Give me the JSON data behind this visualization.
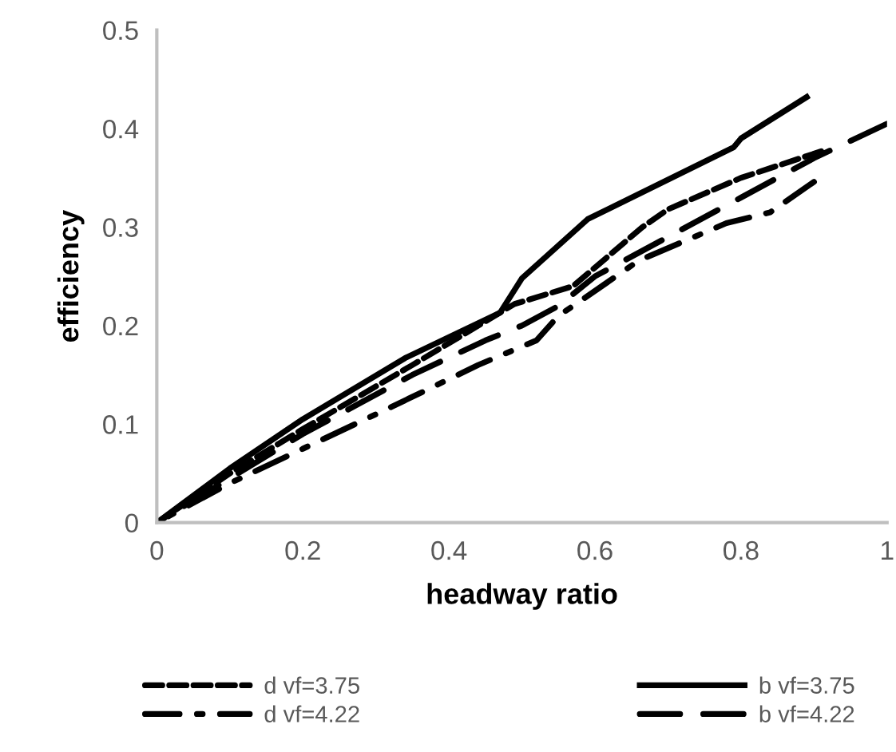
{
  "chart_data": {
    "type": "line",
    "xlabel": "headway ratio",
    "ylabel": "efficiency",
    "xlim": [
      0,
      1
    ],
    "xticks": [
      0,
      0.2,
      0.4,
      0.6,
      0.8,
      1
    ],
    "ylim": [
      0,
      0.5
    ],
    "yticks": [
      0,
      0.1,
      0.2,
      0.3,
      0.4,
      0.5
    ],
    "grid": false,
    "legend": "bottom",
    "marker": "none",
    "series": [
      {
        "name": "d vf=3.75",
        "color": "#000000",
        "line_style": "dashed",
        "x": [
          0,
          0.1,
          0.2,
          0.35,
          0.49,
          0.57,
          0.665,
          0.7,
          0.8,
          0.91
        ],
        "values": [
          0,
          0.05,
          0.095,
          0.16,
          0.222,
          0.24,
          0.3,
          0.318,
          0.35,
          0.377
        ]
      },
      {
        "name": "b vf=3.75",
        "color": "#000000",
        "line_style": "solid",
        "x": [
          0,
          0.1,
          0.2,
          0.34,
          0.47,
          0.5,
          0.59,
          0.79,
          0.8,
          0.89
        ],
        "values": [
          0,
          0.055,
          0.105,
          0.167,
          0.213,
          0.248,
          0.308,
          0.381,
          0.39,
          0.432
        ]
      },
      {
        "name": "d vf=4.22",
        "color": "#000000",
        "line_style": "dashdot",
        "x": [
          0,
          0.1,
          0.2,
          0.32,
          0.44,
          0.52,
          0.55,
          0.58,
          0.66,
          0.78,
          0.84,
          0.9
        ],
        "values": [
          0,
          0.04,
          0.075,
          0.117,
          0.16,
          0.185,
          0.21,
          0.225,
          0.266,
          0.304,
          0.315,
          0.346
        ]
      },
      {
        "name": "b vf=4.22",
        "color": "#000000",
        "line_style": "longdash",
        "x": [
          0,
          0.1,
          0.2,
          0.35,
          0.45,
          0.5,
          0.55,
          0.6,
          0.7,
          0.8,
          0.9,
          1.0
        ],
        "values": [
          0,
          0.045,
          0.09,
          0.15,
          0.185,
          0.2,
          0.22,
          0.25,
          0.29,
          0.33,
          0.37,
          0.405
        ]
      }
    ]
  }
}
